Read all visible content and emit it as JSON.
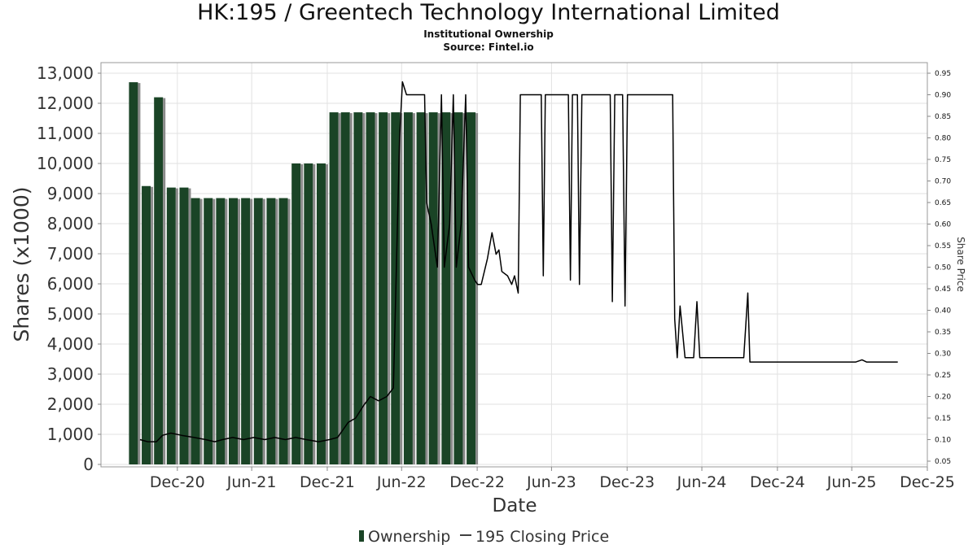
{
  "title": "HK:195 / Greentech Technology International Limited",
  "subtitle": "Institutional Ownership",
  "source": "Source: Fintel.io",
  "chart_data": {
    "type": "bar",
    "xlabel": "Date",
    "ylabel": "Shares (x1000)",
    "y2label": "Share Price",
    "ylim": [
      0,
      13000
    ],
    "y2lim": [
      0.05,
      0.95
    ],
    "yticks": [
      "0",
      "1,000",
      "2,000",
      "3,000",
      "4,000",
      "5,000",
      "6,000",
      "7,000",
      "8,000",
      "9,000",
      "10,000",
      "11,000",
      "12,000",
      "13,000"
    ],
    "y2ticks": [
      "0.05",
      "0.10",
      "0.15",
      "0.20",
      "0.25",
      "0.30",
      "0.35",
      "0.40",
      "0.45",
      "0.50",
      "0.55",
      "0.60",
      "0.65",
      "0.70",
      "0.75",
      "0.80",
      "0.85",
      "0.90",
      "0.95"
    ],
    "xticks": [
      "Dec-20",
      "Jun-21",
      "Dec-21",
      "Jun-22",
      "Dec-22",
      "Jun-23",
      "Dec-23",
      "Jun-24",
      "Dec-24",
      "Jun-25",
      "Dec-25"
    ],
    "xrange": [
      "2020-06-28",
      "2025-12-31"
    ],
    "grid": true,
    "legend_position": "bottom",
    "legend": [
      "Ownership",
      "195 Closing Price"
    ],
    "colors": {
      "bar": "#1a4426",
      "bar_side": "#8a8a8a",
      "line": "#000000",
      "grid": "#e2e2e2"
    },
    "series": [
      {
        "name": "Ownership",
        "type": "bar",
        "points": [
          [
            "2020-09-30",
            12700
          ],
          [
            "2020-10-31",
            9250
          ],
          [
            "2020-11-30",
            12200
          ],
          [
            "2020-12-31",
            9200
          ],
          [
            "2021-01-31",
            9200
          ],
          [
            "2021-02-28",
            8850
          ],
          [
            "2021-03-31",
            8850
          ],
          [
            "2021-04-30",
            8850
          ],
          [
            "2021-05-31",
            8850
          ],
          [
            "2021-06-30",
            8850
          ],
          [
            "2021-07-31",
            8850
          ],
          [
            "2021-08-31",
            8850
          ],
          [
            "2021-09-30",
            8850
          ],
          [
            "2021-10-31",
            10000
          ],
          [
            "2021-11-30",
            10000
          ],
          [
            "2021-12-31",
            10000
          ],
          [
            "2022-01-31",
            11700
          ],
          [
            "2022-02-28",
            11700
          ],
          [
            "2022-03-31",
            11700
          ],
          [
            "2022-04-30",
            11700
          ],
          [
            "2022-05-31",
            11700
          ],
          [
            "2022-06-30",
            11700
          ],
          [
            "2022-07-31",
            11700
          ],
          [
            "2022-08-31",
            11700
          ],
          [
            "2022-09-30",
            11700
          ],
          [
            "2022-10-31",
            11700
          ],
          [
            "2022-11-30",
            11700
          ],
          [
            "2022-12-31",
            11700
          ]
        ]
      },
      {
        "name": "195 Closing Price",
        "type": "line",
        "points": [
          [
            "2020-10-01",
            0.1
          ],
          [
            "2020-10-20",
            0.095
          ],
          [
            "2020-11-10",
            0.095
          ],
          [
            "2020-11-25",
            0.11
          ],
          [
            "2020-12-15",
            0.115
          ],
          [
            "2021-01-10",
            0.11
          ],
          [
            "2021-02-10",
            0.105
          ],
          [
            "2021-03-10",
            0.1
          ],
          [
            "2021-04-01",
            0.095
          ],
          [
            "2021-04-20",
            0.1
          ],
          [
            "2021-05-15",
            0.105
          ],
          [
            "2021-06-10",
            0.1
          ],
          [
            "2021-07-05",
            0.105
          ],
          [
            "2021-08-01",
            0.1
          ],
          [
            "2021-08-25",
            0.105
          ],
          [
            "2021-09-20",
            0.1
          ],
          [
            "2021-10-15",
            0.105
          ],
          [
            "2021-11-10",
            0.1
          ],
          [
            "2021-12-10",
            0.095
          ],
          [
            "2022-01-05",
            0.1
          ],
          [
            "2022-01-25",
            0.105
          ],
          [
            "2022-02-20",
            0.14
          ],
          [
            "2022-03-10",
            0.15
          ],
          [
            "2022-03-30",
            0.18
          ],
          [
            "2022-04-15",
            0.2
          ],
          [
            "2022-05-05",
            0.19
          ],
          [
            "2022-05-25",
            0.2
          ],
          [
            "2022-06-10",
            0.22
          ],
          [
            "2022-06-25",
            0.8
          ],
          [
            "2022-07-02",
            0.93
          ],
          [
            "2022-07-12",
            0.9
          ],
          [
            "2022-08-15",
            0.9
          ],
          [
            "2022-08-25",
            0.9
          ],
          [
            "2022-08-30",
            0.65
          ],
          [
            "2022-09-10",
            0.6
          ],
          [
            "2022-09-25",
            0.5
          ],
          [
            "2022-10-05",
            0.9
          ],
          [
            "2022-10-12",
            0.5
          ],
          [
            "2022-10-25",
            0.6
          ],
          [
            "2022-11-03",
            0.9
          ],
          [
            "2022-11-10",
            0.5
          ],
          [
            "2022-11-22",
            0.6
          ],
          [
            "2022-12-03",
            0.9
          ],
          [
            "2022-12-10",
            0.5
          ],
          [
            "2022-12-25",
            0.47
          ],
          [
            "2023-01-01",
            0.46
          ],
          [
            "2023-01-10",
            0.46
          ],
          [
            "2023-01-25",
            0.52
          ],
          [
            "2023-02-05",
            0.58
          ],
          [
            "2023-02-15",
            0.53
          ],
          [
            "2023-02-22",
            0.54
          ],
          [
            "2023-03-01",
            0.49
          ],
          [
            "2023-03-15",
            0.48
          ],
          [
            "2023-03-25",
            0.46
          ],
          [
            "2023-04-01",
            0.48
          ],
          [
            "2023-04-10",
            0.44
          ],
          [
            "2023-04-15",
            0.9
          ],
          [
            "2023-05-25",
            0.9
          ],
          [
            "2023-06-05",
            0.9
          ],
          [
            "2023-06-10",
            0.48
          ],
          [
            "2023-06-15",
            0.9
          ],
          [
            "2023-08-10",
            0.9
          ],
          [
            "2023-08-15",
            0.47
          ],
          [
            "2023-08-20",
            0.9
          ],
          [
            "2023-09-01",
            0.9
          ],
          [
            "2023-09-06",
            0.46
          ],
          [
            "2023-09-12",
            0.9
          ],
          [
            "2023-11-10",
            0.9
          ],
          [
            "2023-11-20",
            0.9
          ],
          [
            "2023-11-25",
            0.42
          ],
          [
            "2023-12-01",
            0.9
          ],
          [
            "2023-12-20",
            0.9
          ],
          [
            "2023-12-26",
            0.41
          ],
          [
            "2024-01-01",
            0.9
          ],
          [
            "2024-04-10",
            0.9
          ],
          [
            "2024-04-20",
            0.9
          ],
          [
            "2024-04-25",
            0.38
          ],
          [
            "2024-05-01",
            0.29
          ],
          [
            "2024-05-08",
            0.41
          ],
          [
            "2024-05-20",
            0.29
          ],
          [
            "2024-06-10",
            0.29
          ],
          [
            "2024-06-18",
            0.42
          ],
          [
            "2024-06-25",
            0.29
          ],
          [
            "2024-10-01",
            0.29
          ],
          [
            "2024-10-10",
            0.29
          ],
          [
            "2024-10-20",
            0.44
          ],
          [
            "2024-10-25",
            0.28
          ],
          [
            "2025-05-01",
            0.28
          ],
          [
            "2025-07-10",
            0.28
          ],
          [
            "2025-07-25",
            0.285
          ],
          [
            "2025-08-05",
            0.28
          ],
          [
            "2025-10-20",
            0.28
          ]
        ]
      }
    ]
  }
}
